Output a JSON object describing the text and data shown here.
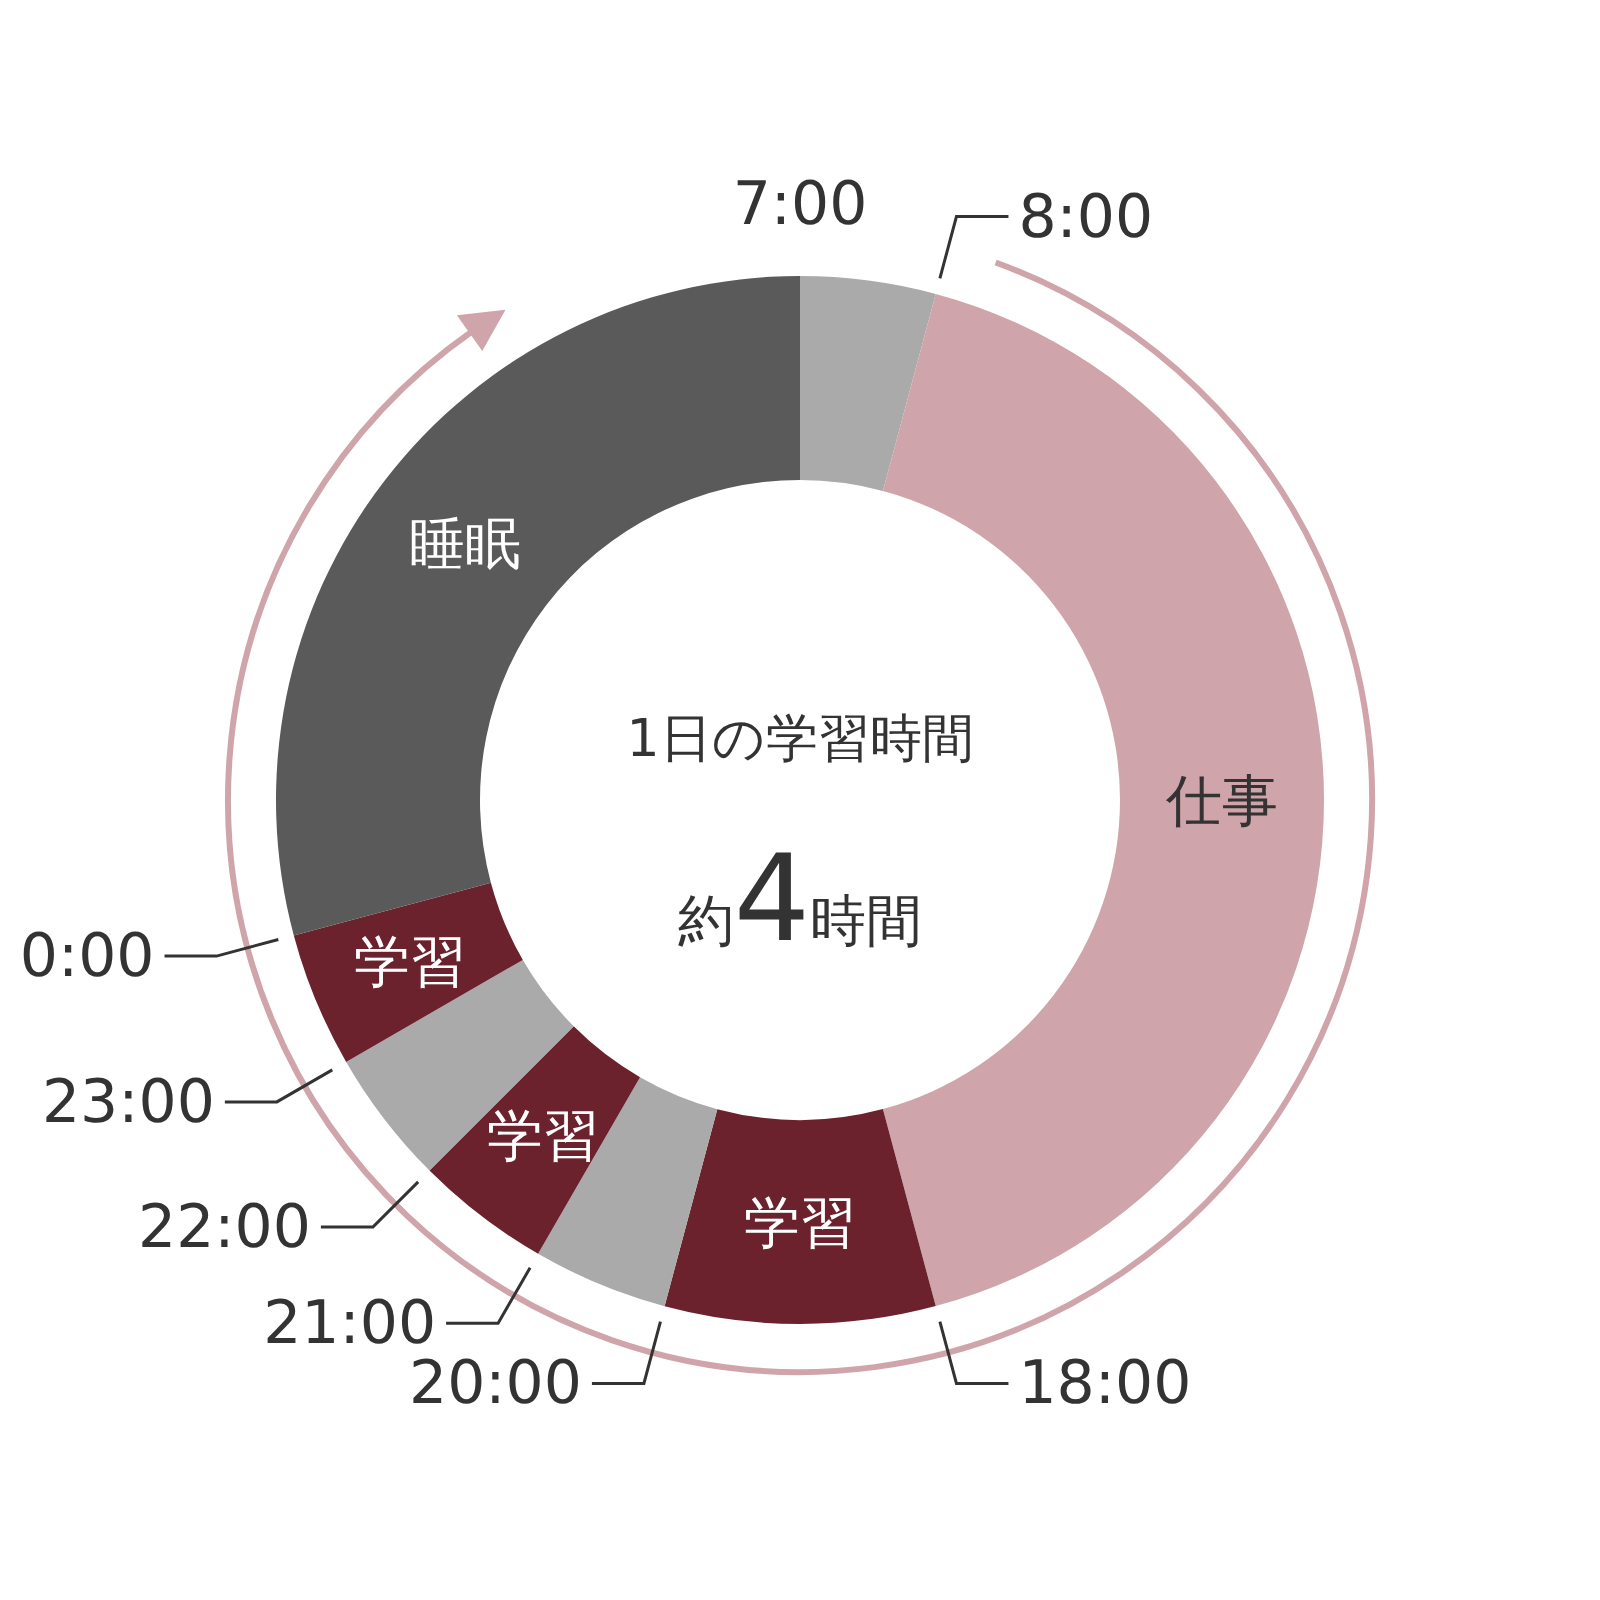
{
  "chart_data": {
    "type": "donut",
    "title": "1日の学習時間",
    "subtitle": "約4時間",
    "categories": [
      null,
      "仕事",
      "学習",
      null,
      "学習",
      null,
      "学習",
      "睡眠"
    ],
    "values": [
      4.17,
      41.66,
      8.33,
      4.17,
      4.17,
      4.17,
      4.17,
      29.16
    ],
    "colors": [
      "#aaaaaa",
      "#cfa5ab",
      "#6b222d",
      "#aaaaaa",
      "#6b222d",
      "#aaaaaa",
      "#6b222d",
      "#5a5a5a"
    ],
    "annotations": [
      "7:00",
      "8:00",
      "18:00",
      "20:00",
      "21:00",
      "22:00",
      "23:00",
      "0:00"
    ],
    "legend": false
  }
}
